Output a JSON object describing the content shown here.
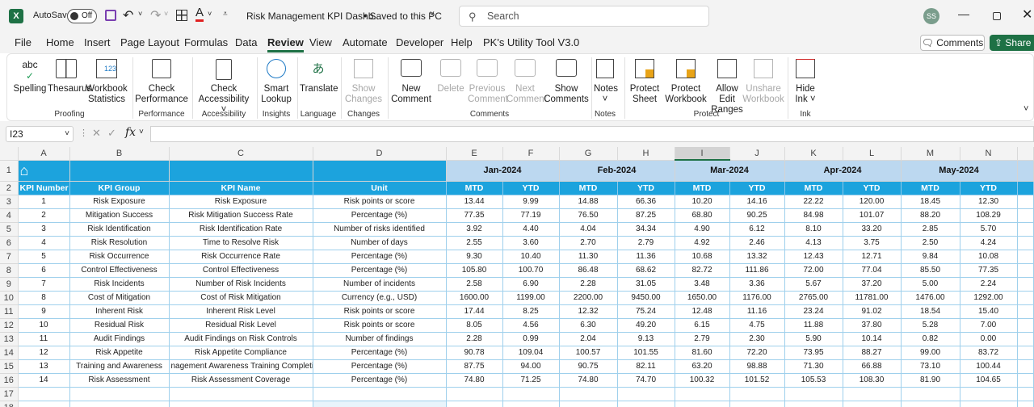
{
  "titlebar": {
    "autosave_label": "AutoSave",
    "autosave_state": "Off",
    "file_title": "Risk Management KPI Dashb...",
    "save_status": "• Saved to this PC",
    "search_placeholder": "Search",
    "user_initials": "SS"
  },
  "menu": {
    "tabs": [
      "File",
      "Home",
      "Insert",
      "Page Layout",
      "Formulas",
      "Data",
      "Review",
      "View",
      "Automate",
      "Developer",
      "Help",
      "PK's Utility Tool V3.0"
    ],
    "active": "Review",
    "comments_button": "Comments",
    "share_button": "Share"
  },
  "ribbon": {
    "buttons": [
      {
        "l1": "Spelling",
        "l2": ""
      },
      {
        "l1": "Thesaurus",
        "l2": ""
      },
      {
        "l1": "Workbook",
        "l2": "Statistics"
      },
      {
        "l1": "Check",
        "l2": "Performance"
      },
      {
        "l1": "Check",
        "l2": "Accessibility ˅"
      },
      {
        "l1": "Smart",
        "l2": "Lookup"
      },
      {
        "l1": "Translate",
        "l2": ""
      },
      {
        "l1": "Show",
        "l2": "Changes"
      },
      {
        "l1": "New",
        "l2": "Comment"
      },
      {
        "l1": "Delete",
        "l2": ""
      },
      {
        "l1": "Previous",
        "l2": "Comment"
      },
      {
        "l1": "Next",
        "l2": "Comment"
      },
      {
        "l1": "Show",
        "l2": "Comments"
      },
      {
        "l1": "Notes",
        "l2": "˅"
      },
      {
        "l1": "Protect",
        "l2": "Sheet"
      },
      {
        "l1": "Protect",
        "l2": "Workbook"
      },
      {
        "l1": "Allow Edit",
        "l2": "Ranges"
      },
      {
        "l1": "Unshare",
        "l2": "Workbook"
      },
      {
        "l1": "Hide",
        "l2": "Ink ˅"
      }
    ],
    "groups": [
      "Proofing",
      "Performance",
      "Accessibility",
      "Insights",
      "Language",
      "Changes",
      "Comments",
      "Notes",
      "Protect",
      "Ink"
    ]
  },
  "formula_bar": {
    "name_box": "I23",
    "fx": "fx",
    "value": ""
  },
  "sheet": {
    "columns": [
      "A",
      "B",
      "C",
      "D",
      "E",
      "F",
      "G",
      "H",
      "I",
      "J",
      "K",
      "L",
      "M",
      "N"
    ],
    "months": [
      "Jan-2024",
      "Feb-2024",
      "Mar-2024",
      "Apr-2024",
      "May-2024"
    ],
    "headers": [
      "KPI Number",
      "KPI Group",
      "KPI Name",
      "Unit",
      "MTD",
      "YTD",
      "MTD",
      "YTD",
      "MTD",
      "YTD",
      "MTD",
      "YTD",
      "MTD",
      "YTD"
    ],
    "row_numbers": [
      "1",
      "2",
      "3",
      "4",
      "5",
      "6",
      "7",
      "8",
      "9",
      "10",
      "11",
      "12",
      "13",
      "14",
      "15",
      "16",
      "17",
      "18"
    ],
    "rows": [
      [
        "1",
        "Risk Exposure",
        "Risk Exposure",
        "Risk points or score",
        "13.44",
        "9.99",
        "14.88",
        "66.36",
        "10.20",
        "14.16",
        "22.22",
        "120.00",
        "18.45",
        "12.30"
      ],
      [
        "2",
        "Mitigation Success",
        "Risk Mitigation Success Rate",
        "Percentage (%)",
        "77.35",
        "77.19",
        "76.50",
        "87.25",
        "68.80",
        "90.25",
        "84.98",
        "101.07",
        "88.20",
        "108.29"
      ],
      [
        "3",
        "Risk Identification",
        "Risk Identification Rate",
        "Number of risks identified",
        "3.92",
        "4.40",
        "4.04",
        "34.34",
        "4.90",
        "6.12",
        "8.10",
        "33.20",
        "2.85",
        "5.70"
      ],
      [
        "4",
        "Risk Resolution",
        "Time to Resolve Risk",
        "Number of days",
        "2.55",
        "3.60",
        "2.70",
        "2.79",
        "4.92",
        "2.46",
        "4.13",
        "3.75",
        "2.50",
        "4.24"
      ],
      [
        "5",
        "Risk Occurrence",
        "Risk Occurrence Rate",
        "Percentage (%)",
        "9.30",
        "10.40",
        "11.30",
        "11.36",
        "10.68",
        "13.32",
        "12.43",
        "12.71",
        "9.84",
        "10.08"
      ],
      [
        "6",
        "Control Effectiveness",
        "Control Effectiveness",
        "Percentage (%)",
        "105.80",
        "100.70",
        "86.48",
        "68.62",
        "82.72",
        "111.86",
        "72.00",
        "77.04",
        "85.50",
        "77.35"
      ],
      [
        "7",
        "Risk Incidents",
        "Number of Risk Incidents",
        "Number of incidents",
        "2.58",
        "6.90",
        "2.28",
        "31.05",
        "3.48",
        "3.36",
        "5.67",
        "37.20",
        "5.00",
        "2.24"
      ],
      [
        "8",
        "Cost of Mitigation",
        "Cost of Risk Mitigation",
        "Currency (e.g., USD)",
        "1600.00",
        "1199.00",
        "2200.00",
        "9450.00",
        "1650.00",
        "1176.00",
        "2765.00",
        "11781.00",
        "1476.00",
        "1292.00"
      ],
      [
        "9",
        "Inherent Risk",
        "Inherent Risk Level",
        "Risk points or score",
        "17.44",
        "8.25",
        "12.32",
        "75.24",
        "12.48",
        "11.16",
        "23.24",
        "91.02",
        "18.54",
        "15.40"
      ],
      [
        "10",
        "Residual Risk",
        "Residual Risk Level",
        "Risk points or score",
        "8.05",
        "4.56",
        "6.30",
        "49.20",
        "6.15",
        "4.75",
        "11.88",
        "37.80",
        "5.28",
        "7.00"
      ],
      [
        "11",
        "Audit Findings",
        "Audit Findings on Risk Controls",
        "Number of findings",
        "2.28",
        "0.99",
        "2.04",
        "9.13",
        "2.79",
        "2.30",
        "5.90",
        "10.14",
        "0.82",
        "0.00"
      ],
      [
        "12",
        "Risk Appetite",
        "Risk Appetite Compliance",
        "Percentage (%)",
        "90.78",
        "109.04",
        "100.57",
        "101.55",
        "81.60",
        "72.20",
        "73.95",
        "88.27",
        "99.00",
        "83.72"
      ],
      [
        "13",
        "Training and Awareness",
        "nagement Awareness Training Completio",
        "Percentage (%)",
        "87.75",
        "94.00",
        "90.75",
        "82.11",
        "63.20",
        "98.88",
        "71.30",
        "66.88",
        "73.10",
        "100.44"
      ],
      [
        "14",
        "Risk Assessment",
        "Risk Assessment Coverage",
        "Percentage (%)",
        "74.80",
        "71.25",
        "74.80",
        "74.70",
        "100.32",
        "101.52",
        "105.53",
        "108.30",
        "81.90",
        "104.65"
      ]
    ]
  },
  "colors": {
    "header_blue": "#1ca3dd",
    "month_band": "#bcd8f0",
    "excel_green": "#1e7145"
  }
}
